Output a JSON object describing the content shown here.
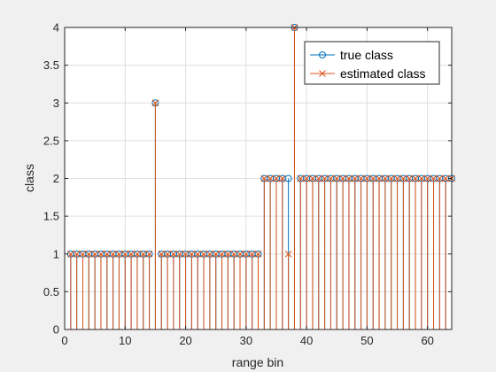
{
  "chart_data": {
    "type": "stem",
    "title": "",
    "xlabel": "range bin",
    "ylabel": "class",
    "xlim": [
      0,
      64
    ],
    "ylim": [
      0,
      4
    ],
    "xticks": [
      0,
      10,
      20,
      30,
      40,
      50,
      60
    ],
    "yticks": [
      0,
      0.5,
      1,
      1.5,
      2,
      2.5,
      3,
      3.5,
      4
    ],
    "grid": true,
    "legend_position": "top-right",
    "x": [
      1,
      2,
      3,
      4,
      5,
      6,
      7,
      8,
      9,
      10,
      11,
      12,
      13,
      14,
      15,
      16,
      17,
      18,
      19,
      20,
      21,
      22,
      23,
      24,
      25,
      26,
      27,
      28,
      29,
      30,
      31,
      32,
      33,
      34,
      35,
      36,
      37,
      38,
      39,
      40,
      41,
      42,
      43,
      44,
      45,
      46,
      47,
      48,
      49,
      50,
      51,
      52,
      53,
      54,
      55,
      56,
      57,
      58,
      59,
      60,
      61,
      62,
      63,
      64
    ],
    "series": [
      {
        "name": "true class",
        "marker": "o",
        "color": "#0072BD",
        "values": [
          1,
          1,
          1,
          1,
          1,
          1,
          1,
          1,
          1,
          1,
          1,
          1,
          1,
          1,
          3,
          1,
          1,
          1,
          1,
          1,
          1,
          1,
          1,
          1,
          1,
          1,
          1,
          1,
          1,
          1,
          1,
          1,
          2,
          2,
          2,
          2,
          2,
          4,
          2,
          2,
          2,
          2,
          2,
          2,
          2,
          2,
          2,
          2,
          2,
          2,
          2,
          2,
          2,
          2,
          2,
          2,
          2,
          2,
          2,
          2,
          2,
          2,
          2,
          2
        ]
      },
      {
        "name": "estimated class",
        "marker": "x",
        "color": "#D95319",
        "values": [
          1,
          1,
          1,
          1,
          1,
          1,
          1,
          1,
          1,
          1,
          1,
          1,
          1,
          1,
          3,
          1,
          1,
          1,
          1,
          1,
          1,
          1,
          1,
          1,
          1,
          1,
          1,
          1,
          1,
          1,
          1,
          1,
          2,
          2,
          2,
          2,
          1,
          4,
          2,
          2,
          2,
          2,
          2,
          2,
          2,
          2,
          2,
          2,
          2,
          2,
          2,
          2,
          2,
          2,
          2,
          2,
          2,
          2,
          2,
          2,
          2,
          2,
          2,
          2
        ]
      }
    ]
  }
}
